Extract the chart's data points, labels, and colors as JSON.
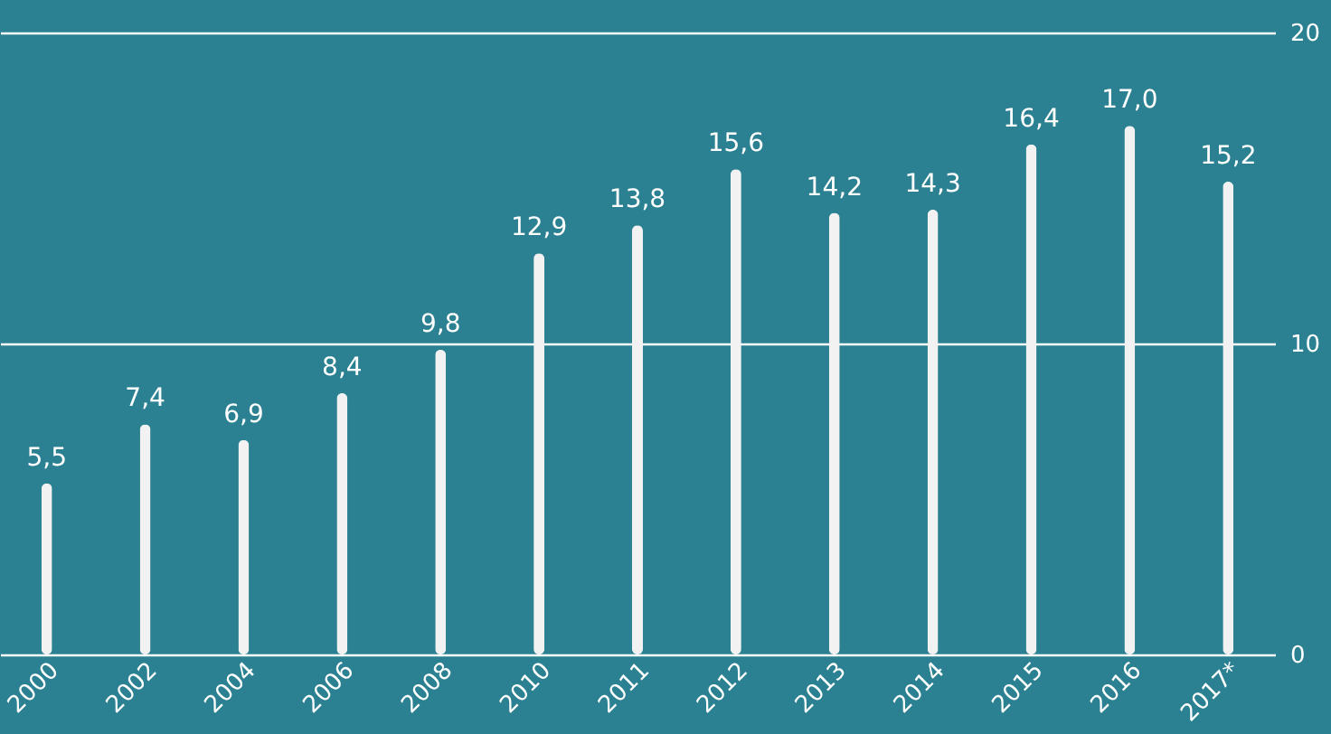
{
  "chart_data": {
    "type": "bar",
    "categories": [
      "2000",
      "2002",
      "2004",
      "2006",
      "2008",
      "2010",
      "2011",
      "2012",
      "2013",
      "2014",
      "2015",
      "2016",
      "2017*"
    ],
    "values": [
      5.5,
      7.4,
      6.9,
      8.4,
      9.8,
      12.9,
      13.8,
      15.6,
      14.2,
      14.3,
      16.4,
      17.0,
      15.2
    ],
    "value_labels": [
      "5,5",
      "7,4",
      "6,9",
      "8,4",
      "9,8",
      "12,9",
      "13,8",
      "15,6",
      "14,2",
      "14,3",
      "16,4",
      "17,0",
      "15,2"
    ],
    "color": "#f2f2f2",
    "ylim": [
      0,
      20
    ],
    "yticks": [
      0,
      10,
      20
    ],
    "grid": "y"
  }
}
